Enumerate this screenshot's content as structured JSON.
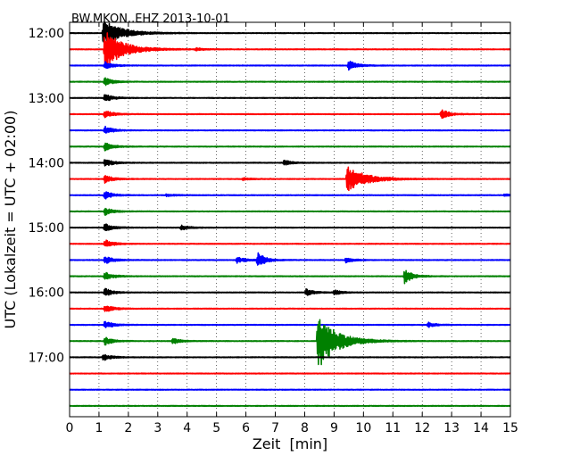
{
  "chart_data": {
    "type": "line",
    "title": "BW.MKON..EHZ 2013-10-01",
    "xlabel": "Zeit  [min]",
    "ylabel": "UTC (Lokalzeit = UTC + 02:00)",
    "xlim": [
      0,
      15
    ],
    "x_ticks": [
      0,
      1,
      2,
      3,
      4,
      5,
      6,
      7,
      8,
      9,
      10,
      11,
      12,
      13,
      14,
      15
    ],
    "y_time_range": [
      "11:50",
      "17:55"
    ],
    "y_ticks": [
      {
        "label": "12:00",
        "hour": 12.0
      },
      {
        "label": "13:00",
        "hour": 13.0
      },
      {
        "label": "14:00",
        "hour": 14.0
      },
      {
        "label": "15:00",
        "hour": 15.0
      },
      {
        "label": "16:00",
        "hour": 16.0
      },
      {
        "label": "17:00",
        "hour": 17.0
      }
    ],
    "grid": "vertical dotted",
    "trace_interval_min": 15,
    "trace_colors": [
      "#000000",
      "#ff0000",
      "#0000ff",
      "#008000"
    ],
    "traces": [
      {
        "start": "12:00",
        "color": "#000000",
        "events": [
          {
            "t": 1.15,
            "amp": 1.6
          }
        ]
      },
      {
        "start": "12:15",
        "color": "#ff0000",
        "events": [
          {
            "t": 1.2,
            "amp": 2.4
          },
          {
            "t": 4.3,
            "amp": 0.15
          }
        ]
      },
      {
        "start": "12:30",
        "color": "#0000ff",
        "events": [
          {
            "t": 1.2,
            "amp": 0.5
          },
          {
            "t": 9.5,
            "amp": 0.6
          }
        ]
      },
      {
        "start": "12:45",
        "color": "#008000",
        "events": [
          {
            "t": 1.2,
            "amp": 0.5
          }
        ]
      },
      {
        "start": "13:00",
        "color": "#000000",
        "events": [
          {
            "t": 1.2,
            "amp": 0.5
          }
        ]
      },
      {
        "start": "13:15",
        "color": "#ff0000",
        "events": [
          {
            "t": 1.2,
            "amp": 0.5
          },
          {
            "t": 12.65,
            "amp": 0.6
          }
        ]
      },
      {
        "start": "13:30",
        "color": "#0000ff",
        "events": [
          {
            "t": 1.2,
            "amp": 0.5
          }
        ]
      },
      {
        "start": "13:45",
        "color": "#008000",
        "events": [
          {
            "t": 1.2,
            "amp": 0.5
          }
        ]
      },
      {
        "start": "14:00",
        "color": "#000000",
        "events": [
          {
            "t": 1.2,
            "amp": 0.5
          },
          {
            "t": 7.3,
            "amp": 0.3
          }
        ]
      },
      {
        "start": "14:15",
        "color": "#ff0000",
        "events": [
          {
            "t": 1.2,
            "amp": 0.5
          },
          {
            "t": 5.9,
            "amp": 0.15
          },
          {
            "t": 9.45,
            "amp": 1.6
          }
        ]
      },
      {
        "start": "14:30",
        "color": "#0000ff",
        "events": [
          {
            "t": 1.2,
            "amp": 0.5
          },
          {
            "t": 3.3,
            "amp": 0.15
          },
          {
            "t": 14.8,
            "amp": 0.15
          }
        ]
      },
      {
        "start": "14:45",
        "color": "#008000",
        "events": [
          {
            "t": 1.2,
            "amp": 0.5
          }
        ]
      },
      {
        "start": "15:00",
        "color": "#000000",
        "events": [
          {
            "t": 1.2,
            "amp": 0.5
          },
          {
            "t": 3.8,
            "amp": 0.3
          }
        ]
      },
      {
        "start": "15:15",
        "color": "#ff0000",
        "events": [
          {
            "t": 1.2,
            "amp": 0.5
          }
        ]
      },
      {
        "start": "15:30",
        "color": "#0000ff",
        "events": [
          {
            "t": 1.2,
            "amp": 0.5
          },
          {
            "t": 5.7,
            "amp": 0.4
          },
          {
            "t": 6.4,
            "amp": 0.9
          },
          {
            "t": 9.4,
            "amp": 0.3
          }
        ]
      },
      {
        "start": "15:45",
        "color": "#008000",
        "events": [
          {
            "t": 1.2,
            "amp": 0.5
          },
          {
            "t": 11.4,
            "amp": 0.9
          }
        ]
      },
      {
        "start": "16:00",
        "color": "#000000",
        "events": [
          {
            "t": 1.2,
            "amp": 0.5
          },
          {
            "t": 8.05,
            "amp": 0.4
          },
          {
            "t": 9.0,
            "amp": 0.3
          }
        ]
      },
      {
        "start": "16:15",
        "color": "#ff0000",
        "events": [
          {
            "t": 1.2,
            "amp": 0.5
          }
        ]
      },
      {
        "start": "16:30",
        "color": "#0000ff",
        "events": [
          {
            "t": 1.2,
            "amp": 0.5
          },
          {
            "t": 12.2,
            "amp": 0.3
          }
        ]
      },
      {
        "start": "16:45",
        "color": "#008000",
        "events": [
          {
            "t": 1.2,
            "amp": 0.5
          },
          {
            "t": 3.5,
            "amp": 0.4
          },
          {
            "t": 8.45,
            "amp": 3.5
          }
        ]
      },
      {
        "start": "17:00",
        "color": "#000000",
        "events": [
          {
            "t": 1.15,
            "amp": 0.4
          }
        ]
      },
      {
        "start": "17:15",
        "color": "#ff0000",
        "events": []
      },
      {
        "start": "17:30",
        "color": "#0000ff",
        "events": []
      },
      {
        "start": "17:45",
        "color": "#008000",
        "events": []
      }
    ]
  }
}
